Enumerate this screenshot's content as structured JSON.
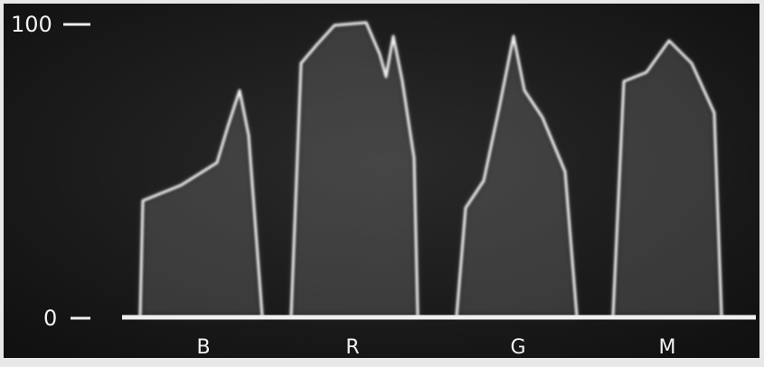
{
  "scale": {
    "top": 100,
    "bottom": 0
  },
  "channels": [
    "B",
    "R",
    "G",
    "M"
  ]
}
